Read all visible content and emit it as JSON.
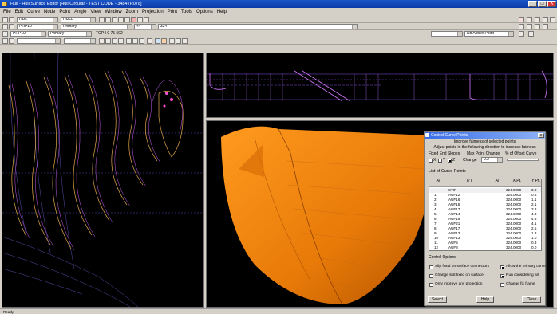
{
  "window": {
    "title": "Hull - Hull Surface Editor [Hull Circular - TEST CODE - 3484TR078]",
    "min": "_",
    "max": "□",
    "close": "X"
  },
  "menu": [
    "File",
    "Edit",
    "Curve",
    "Node",
    "Point",
    "Angle",
    "View",
    "Window",
    "Zoom",
    "Projection",
    "Print",
    "Tools",
    "Options",
    "Help"
  ],
  "toolbar2": {
    "combo1": "HUL",
    "combo2": "HULL",
    "combo3": "Primary",
    "combo4": "44",
    "combo5": "324"
  },
  "toolbar3": {
    "combo1": "PRP10",
    "combo2": "Primary",
    "status": "TOP4 0 75 592",
    "rightcombo": "No Active Point"
  },
  "dialog": {
    "title": "Control Curve Points",
    "line1": "Improve fairness of selected points",
    "line2": "Adjust points in the following direction to increase fairness",
    "fixed_label": "Fixed End Slopes",
    "max_change_label": "Max Point Change",
    "pct_label": "% of Offset Curve",
    "axis_x": "X",
    "axis_y": "Y",
    "axis_z": "Z",
    "change_label": "Change",
    "change_value": "0.2",
    "list_title": "List of Curve Points",
    "columns": [
      "A/",
      "T/T",
      "A/",
      "X Pt.",
      "Y Pt."
    ],
    "rows": [
      [
        "",
        "STIP",
        "",
        "324.0000",
        "0.0"
      ],
      [
        "1",
        "AUF12",
        "",
        "324.0000",
        "0.8"
      ],
      [
        "2",
        "AUF16",
        "",
        "324.0000",
        "1.1"
      ],
      [
        "3",
        "AUF16",
        "",
        "324.0000",
        "2.1"
      ],
      [
        "4",
        "AUF17",
        "",
        "324.0000",
        "3.3"
      ],
      [
        "5",
        "AUF14",
        "",
        "324.0000",
        "4.3"
      ],
      [
        "6",
        "AUF19",
        "",
        "324.0000",
        "4.3"
      ],
      [
        "7",
        "AUF21",
        "",
        "324.0000",
        "4.1"
      ],
      [
        "8",
        "AUF17",
        "",
        "324.0000",
        "2.5"
      ],
      [
        "9",
        "AUF13",
        "",
        "324.0000",
        "1.3"
      ],
      [
        "10",
        "AUF13",
        "",
        "324.0000",
        "1.0"
      ],
      [
        "11",
        "AUF5",
        "",
        "324.0000",
        "0.3"
      ],
      [
        "12",
        "AUF8",
        "",
        "324.0000",
        "0.0"
      ]
    ],
    "options_title": "Control Options",
    "opt1": "Slip fixed on surface connectors",
    "opt2": "Change slot fixed on surface",
    "opt3": "Only improve any projection",
    "opt4": "Allow the primary curve",
    "opt5": "Run considering all",
    "opt6": "Change fix frame",
    "select_btn": "Select",
    "help_btn": "Help",
    "close_btn": "Close"
  },
  "status": {
    "text": "Ready"
  },
  "colors": {
    "accent": "#0a3aa8",
    "hull": "#f28a0c",
    "wire": "#c85cf0"
  }
}
